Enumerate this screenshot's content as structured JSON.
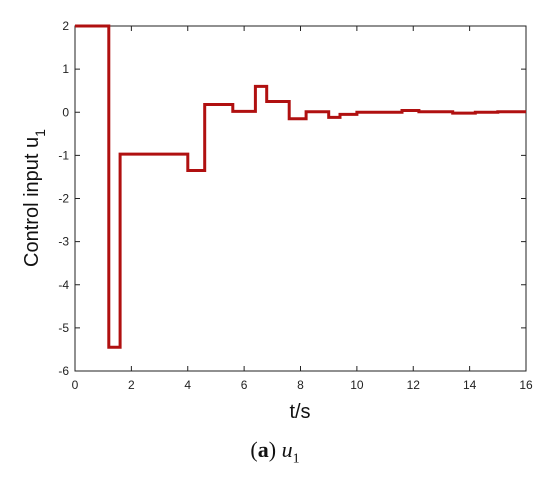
{
  "chart_data": {
    "type": "line",
    "step": true,
    "xlabel": "t/s",
    "ylabel": "Control input u",
    "ylabel_subscript": "1",
    "xlim": [
      0,
      16
    ],
    "ylim": [
      -6,
      2
    ],
    "xticks": [
      "0",
      "2",
      "4",
      "6",
      "8",
      "10",
      "12",
      "14",
      "16"
    ],
    "yticks": [
      "2",
      "1",
      "0",
      "-1",
      "-2",
      "-3",
      "-4",
      "-5",
      "-6"
    ],
    "grid": false,
    "series": [
      {
        "color": "#b01010",
        "x": [
          0,
          1.2,
          1.2,
          1.6,
          1.6,
          4.0,
          4.0,
          4.6,
          4.6,
          5.6,
          5.6,
          6.4,
          6.4,
          6.8,
          6.8,
          7.6,
          7.6,
          8.2,
          8.2,
          9.0,
          9.0,
          9.4,
          9.4,
          10.0,
          10.0,
          11.6,
          11.6,
          12.2,
          12.2,
          13.4,
          13.4,
          14.2,
          14.2,
          15.0,
          15.0,
          16.0
        ],
        "y": [
          2.0,
          2.0,
          -5.45,
          -5.45,
          -0.97,
          -0.97,
          -1.35,
          -1.35,
          0.18,
          0.18,
          0.02,
          0.02,
          0.6,
          0.6,
          0.25,
          0.25,
          -0.15,
          -0.15,
          0.01,
          0.01,
          -0.12,
          -0.12,
          -0.05,
          -0.05,
          0.0,
          0.0,
          0.04,
          0.04,
          0.01,
          0.01,
          -0.02,
          -0.02,
          0.0,
          0.0,
          0.01,
          0.01
        ]
      }
    ]
  },
  "caption": {
    "label": "a",
    "symbol": "u",
    "subscript": "1"
  }
}
